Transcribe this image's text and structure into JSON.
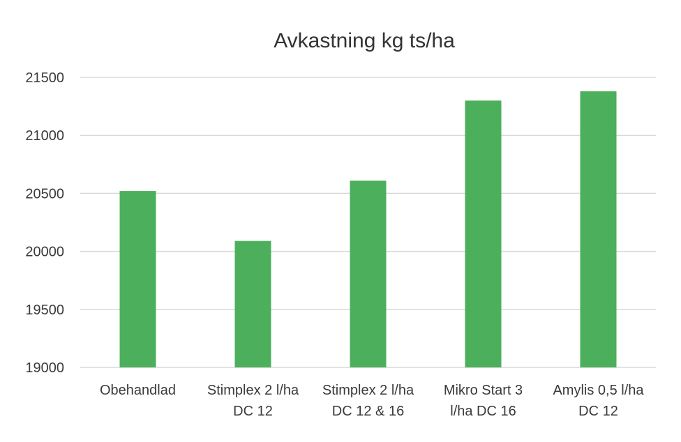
{
  "chart_data": {
    "type": "bar",
    "title": "Avkastning kg ts/ha",
    "xlabel": "",
    "ylabel": "",
    "categories": [
      [
        "Obehandlad"
      ],
      [
        "Stimplex 2 l/ha",
        "DC 12"
      ],
      [
        "Stimplex 2 l/ha",
        "DC 12 & 16"
      ],
      [
        "Mikro Start 3",
        "l/ha DC 16"
      ],
      [
        "Amylis 0,5 l/ha",
        "DC 12"
      ]
    ],
    "values": [
      20520,
      20090,
      20610,
      21300,
      21380
    ],
    "ylim": [
      19000,
      21500
    ],
    "yticks": [
      "21500",
      "21000",
      "20500",
      "20000",
      "19500",
      "19000"
    ],
    "bar_color": "#4caf5c",
    "grid": true,
    "legend": "none"
  }
}
